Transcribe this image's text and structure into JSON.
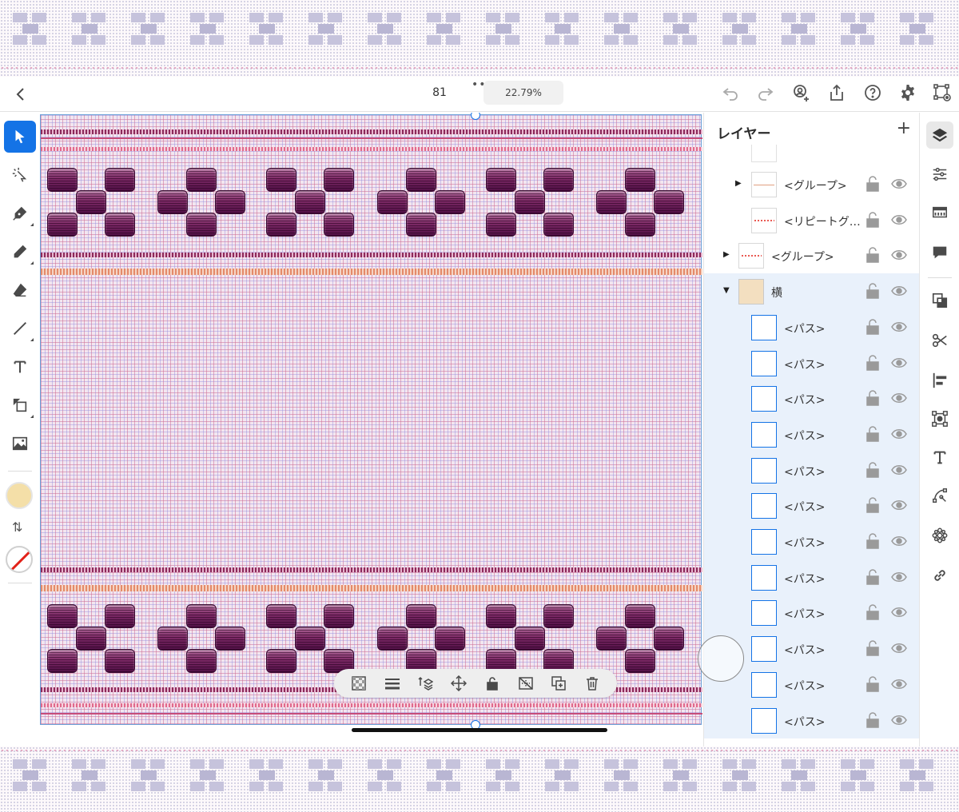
{
  "topbar": {
    "document_number": "81",
    "zoom": "22.79%"
  },
  "colors": {
    "accent": "#1473e6",
    "fill_color": "#f4dfa8",
    "stroke_color": "none",
    "pattern_base": "#f3e6f0",
    "pattern_block": "#7d2a66"
  },
  "left_tools": [
    {
      "icon": "selection-arrow-icon"
    },
    {
      "icon": "direct-select-icon"
    },
    {
      "icon": "pen-icon"
    },
    {
      "icon": "pencil-icon"
    },
    {
      "icon": "eraser-icon"
    },
    {
      "icon": "line-icon"
    },
    {
      "icon": "type-icon"
    },
    {
      "icon": "shape-icon"
    },
    {
      "icon": "image-icon"
    }
  ],
  "layers": {
    "title": "レイヤー",
    "add_symbol": "+",
    "items": [
      {
        "name": "<グループ>",
        "thumb": "line"
      },
      {
        "name": "<リピートグ…",
        "thumb": "red-dots"
      },
      {
        "name": "<グループ>",
        "thumb": "red-dots"
      },
      {
        "name": "横",
        "thumb": "cream"
      },
      {
        "name": "<パス>"
      },
      {
        "name": "<パス>"
      },
      {
        "name": "<パス>"
      },
      {
        "name": "<パス>"
      },
      {
        "name": "<パス>"
      },
      {
        "name": "<パス>"
      },
      {
        "name": "<パス>"
      },
      {
        "name": "<パス>"
      },
      {
        "name": "<パス>"
      },
      {
        "name": "<パス>"
      },
      {
        "name": "<パス>"
      },
      {
        "name": "<パス>"
      }
    ]
  },
  "right_rail": [
    {
      "icon": "layers-icon"
    },
    {
      "icon": "properties-sliders-icon"
    },
    {
      "icon": "swatches-icon"
    },
    {
      "icon": "comments-icon"
    },
    {
      "icon": "pathfinder-icon"
    },
    {
      "icon": "scissors-icon"
    },
    {
      "icon": "align-icon"
    },
    {
      "icon": "transform-icon"
    },
    {
      "icon": "type-panel-icon"
    },
    {
      "icon": "path-tools-icon"
    },
    {
      "icon": "pattern-icon"
    },
    {
      "icon": "link-icon"
    }
  ],
  "context_bar": [
    {
      "icon": "transparency-icon"
    },
    {
      "icon": "stroke-weight-icon"
    },
    {
      "icon": "arrange-icon"
    },
    {
      "icon": "move-icon"
    },
    {
      "icon": "lock-icon"
    },
    {
      "icon": "hide-icon"
    },
    {
      "icon": "duplicate-icon"
    },
    {
      "icon": "delete-icon"
    }
  ]
}
